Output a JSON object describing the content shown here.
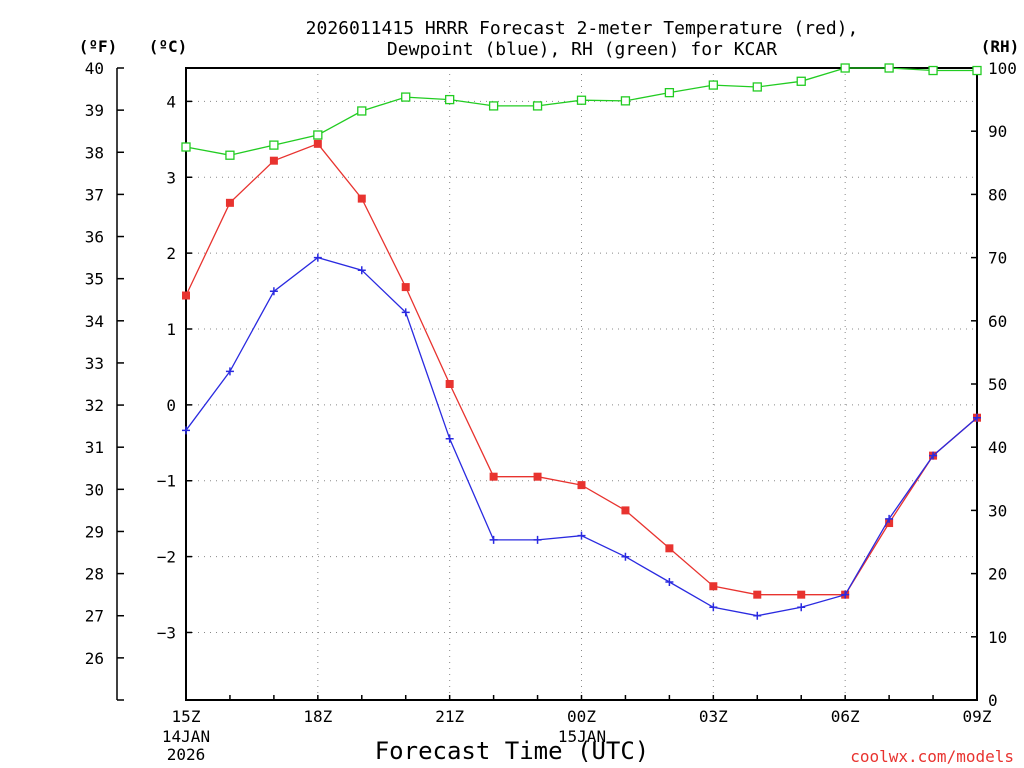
{
  "chart_data": {
    "type": "line",
    "title": [
      "2026011415 HRRR Forecast 2-meter Temperature (red),",
      "Dewpoint (blue), RH (green) for KCAR"
    ],
    "xlabel": "Forecast Time (UTC)",
    "credit": "coolwx.com/models",
    "x": [
      "15Z",
      "16Z",
      "17Z",
      "18Z",
      "19Z",
      "20Z",
      "21Z",
      "22Z",
      "23Z",
      "00Z",
      "01Z",
      "02Z",
      "03Z",
      "04Z",
      "05Z",
      "06Z",
      "07Z",
      "08Z",
      "09Z"
    ],
    "x_tick_labels": [
      "15Z",
      "18Z",
      "21Z",
      "00Z",
      "03Z",
      "06Z",
      "09Z"
    ],
    "date_labels": [
      [
        "14JAN",
        "2026"
      ],
      [
        "15JAN"
      ]
    ],
    "unit_labels": {
      "fahrenheit": "(ºF)",
      "celsius": "(ºC)",
      "rh": "(RH)"
    },
    "axes": {
      "fahrenheit": {
        "range": [
          25,
          40
        ],
        "ticks": [
          26,
          27,
          28,
          29,
          30,
          31,
          32,
          33,
          34,
          35,
          36,
          37,
          38,
          39,
          40
        ]
      },
      "celsius": {
        "range": [
          -3.89,
          4.44
        ],
        "ticks": [
          -3,
          -2,
          -1,
          0,
          1,
          2,
          3,
          4
        ]
      },
      "rh": {
        "range": [
          0,
          100
        ],
        "ticks": [
          0,
          10,
          20,
          30,
          40,
          50,
          60,
          70,
          80,
          90,
          100
        ]
      }
    },
    "grid": true,
    "series": [
      {
        "name": "Temperature",
        "unit": "F",
        "color": "#e8332f",
        "marker": "square",
        "values": [
          34.6,
          36.8,
          37.8,
          38.2,
          36.9,
          34.8,
          32.5,
          30.3,
          30.3,
          30.1,
          29.5,
          28.6,
          27.7,
          27.5,
          27.5,
          27.5,
          29.2,
          30.8,
          31.7
        ]
      },
      {
        "name": "Dewpoint",
        "unit": "F",
        "color": "#2a2ae0",
        "marker": "plus",
        "values": [
          31.4,
          32.8,
          34.7,
          35.5,
          35.2,
          34.2,
          31.2,
          28.8,
          28.8,
          28.9,
          28.4,
          27.8,
          27.2,
          27.0,
          27.2,
          27.5,
          29.3,
          30.8,
          31.7
        ]
      },
      {
        "name": "RH",
        "unit": "%",
        "color": "#22cc22",
        "marker": "open-square",
        "values": [
          87.5,
          86.2,
          87.8,
          89.4,
          93.2,
          95.4,
          95.0,
          94.0,
          94.0,
          94.9,
          94.8,
          96.1,
          97.3,
          97.0,
          97.9,
          100,
          100,
          99.6,
          99.6
        ]
      }
    ]
  }
}
